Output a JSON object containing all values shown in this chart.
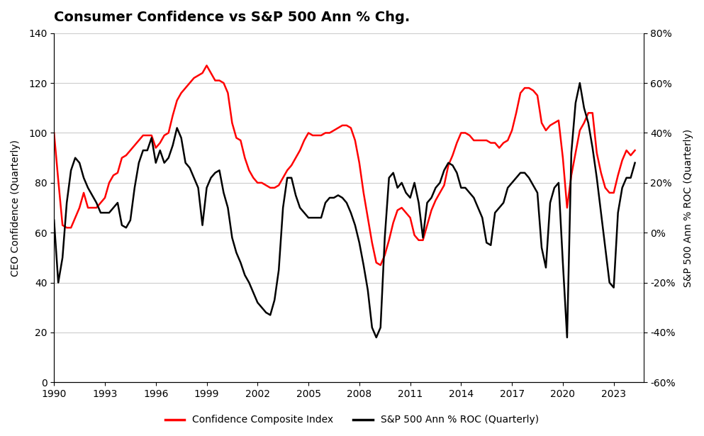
{
  "title": "Consumer Confidence vs S&P 500 Ann % Chg.",
  "ylabel_left": "CEO Confidence (Quarterly)",
  "ylabel_right": "S&P 500 Ann % ROC (Quarterly)",
  "legend_labels": [
    "Confidence Composite Index",
    "S&P 500 Ann % ROC (Quarterly)"
  ],
  "left_color": "#FF0000",
  "right_color": "#000000",
  "background_color": "#FFFFFF",
  "grid_color": "#CCCCCC",
  "ylim_left": [
    0,
    140
  ],
  "ylim_right": [
    -60,
    80
  ],
  "yticks_left": [
    0,
    20,
    40,
    60,
    80,
    100,
    120,
    140
  ],
  "yticks_right": [
    -60,
    -40,
    -20,
    0,
    20,
    40,
    60,
    80
  ],
  "ytick_labels_right": [
    "-60%",
    "-40%",
    "-20%",
    "0%",
    "20%",
    "40%",
    "60%",
    "80%"
  ],
  "xticks": [
    1990,
    1993,
    1996,
    1999,
    2002,
    2005,
    2008,
    2011,
    2014,
    2017,
    2020,
    2023
  ],
  "xlim": [
    1990,
    2024.75
  ],
  "confidence_x": [
    1990.0,
    1990.25,
    1990.5,
    1990.75,
    1991.0,
    1991.25,
    1991.5,
    1991.75,
    1992.0,
    1992.25,
    1992.5,
    1992.75,
    1993.0,
    1993.25,
    1993.5,
    1993.75,
    1994.0,
    1994.25,
    1994.5,
    1994.75,
    1995.0,
    1995.25,
    1995.5,
    1995.75,
    1996.0,
    1996.25,
    1996.5,
    1996.75,
    1997.0,
    1997.25,
    1997.5,
    1997.75,
    1998.0,
    1998.25,
    1998.5,
    1998.75,
    1999.0,
    1999.25,
    1999.5,
    1999.75,
    2000.0,
    2000.25,
    2000.5,
    2000.75,
    2001.0,
    2001.25,
    2001.5,
    2001.75,
    2002.0,
    2002.25,
    2002.5,
    2002.75,
    2003.0,
    2003.25,
    2003.5,
    2003.75,
    2004.0,
    2004.25,
    2004.5,
    2004.75,
    2005.0,
    2005.25,
    2005.5,
    2005.75,
    2006.0,
    2006.25,
    2006.5,
    2006.75,
    2007.0,
    2007.25,
    2007.5,
    2007.75,
    2008.0,
    2008.25,
    2008.5,
    2008.75,
    2009.0,
    2009.25,
    2009.5,
    2009.75,
    2010.0,
    2010.25,
    2010.5,
    2010.75,
    2011.0,
    2011.25,
    2011.5,
    2011.75,
    2012.0,
    2012.25,
    2012.5,
    2012.75,
    2013.0,
    2013.25,
    2013.5,
    2013.75,
    2014.0,
    2014.25,
    2014.5,
    2014.75,
    2015.0,
    2015.25,
    2015.5,
    2015.75,
    2016.0,
    2016.25,
    2016.5,
    2016.75,
    2017.0,
    2017.25,
    2017.5,
    2017.75,
    2018.0,
    2018.25,
    2018.5,
    2018.75,
    2019.0,
    2019.25,
    2019.5,
    2019.75,
    2020.0,
    2020.25,
    2020.5,
    2020.75,
    2021.0,
    2021.25,
    2021.5,
    2021.75,
    2022.0,
    2022.25,
    2022.5,
    2022.75,
    2023.0,
    2023.25,
    2023.5,
    2023.75,
    2024.0,
    2024.25
  ],
  "confidence_y": [
    100,
    81,
    63,
    62,
    62,
    66,
    70,
    76,
    70,
    70,
    70,
    72,
    74,
    80,
    83,
    84,
    90,
    91,
    93,
    95,
    97,
    99,
    99,
    99,
    94,
    96,
    99,
    100,
    107,
    113,
    116,
    118,
    120,
    122,
    123,
    124,
    127,
    124,
    121,
    121,
    120,
    116,
    104,
    98,
    97,
    90,
    85,
    82,
    80,
    80,
    79,
    78,
    78,
    79,
    82,
    85,
    87,
    90,
    93,
    97,
    100,
    99,
    99,
    99,
    100,
    100,
    101,
    102,
    103,
    103,
    102,
    97,
    88,
    76,
    66,
    56,
    48,
    47,
    51,
    57,
    64,
    69,
    70,
    68,
    66,
    59,
    57,
    57,
    63,
    69,
    73,
    76,
    79,
    87,
    91,
    96,
    100,
    100,
    99,
    97,
    97,
    97,
    97,
    96,
    96,
    94,
    96,
    97,
    101,
    108,
    116,
    118,
    118,
    117,
    115,
    104,
    101,
    103,
    104,
    105,
    90,
    70,
    83,
    92,
    101,
    104,
    108,
    108,
    92,
    84,
    78,
    76,
    76,
    83,
    89,
    93,
    91,
    93
  ],
  "sp500_x": [
    1990.0,
    1990.25,
    1990.5,
    1990.75,
    1991.0,
    1991.25,
    1991.5,
    1991.75,
    1992.0,
    1992.25,
    1992.5,
    1992.75,
    1993.0,
    1993.25,
    1993.5,
    1993.75,
    1994.0,
    1994.25,
    1994.5,
    1994.75,
    1995.0,
    1995.25,
    1995.5,
    1995.75,
    1996.0,
    1996.25,
    1996.5,
    1996.75,
    1997.0,
    1997.25,
    1997.5,
    1997.75,
    1998.0,
    1998.25,
    1998.5,
    1998.75,
    1999.0,
    1999.25,
    1999.5,
    1999.75,
    2000.0,
    2000.25,
    2000.5,
    2000.75,
    2001.0,
    2001.25,
    2001.5,
    2001.75,
    2002.0,
    2002.25,
    2002.5,
    2002.75,
    2003.0,
    2003.25,
    2003.5,
    2003.75,
    2004.0,
    2004.25,
    2004.5,
    2004.75,
    2005.0,
    2005.25,
    2005.5,
    2005.75,
    2006.0,
    2006.25,
    2006.5,
    2006.75,
    2007.0,
    2007.25,
    2007.5,
    2007.75,
    2008.0,
    2008.25,
    2008.5,
    2008.75,
    2009.0,
    2009.25,
    2009.5,
    2009.75,
    2010.0,
    2010.25,
    2010.5,
    2010.75,
    2011.0,
    2011.25,
    2011.5,
    2011.75,
    2012.0,
    2012.25,
    2012.5,
    2012.75,
    2013.0,
    2013.25,
    2013.5,
    2013.75,
    2014.0,
    2014.25,
    2014.5,
    2014.75,
    2015.0,
    2015.25,
    2015.5,
    2015.75,
    2016.0,
    2016.25,
    2016.5,
    2016.75,
    2017.0,
    2017.25,
    2017.5,
    2017.75,
    2018.0,
    2018.25,
    2018.5,
    2018.75,
    2019.0,
    2019.25,
    2019.5,
    2019.75,
    2020.0,
    2020.25,
    2020.5,
    2020.75,
    2021.0,
    2021.25,
    2021.5,
    2021.75,
    2022.0,
    2022.25,
    2022.5,
    2022.75,
    2023.0,
    2023.25,
    2023.5,
    2023.75,
    2024.0,
    2024.25
  ],
  "sp500_y": [
    5,
    -20,
    -10,
    12,
    25,
    30,
    28,
    22,
    18,
    15,
    12,
    8,
    8,
    8,
    10,
    12,
    3,
    2,
    5,
    18,
    28,
    33,
    33,
    38,
    28,
    33,
    28,
    30,
    35,
    42,
    38,
    28,
    26,
    22,
    18,
    3,
    18,
    22,
    24,
    25,
    16,
    10,
    -2,
    -8,
    -12,
    -17,
    -20,
    -24,
    -28,
    -30,
    -32,
    -33,
    -27,
    -15,
    10,
    22,
    22,
    15,
    10,
    8,
    6,
    6,
    6,
    6,
    12,
    14,
    14,
    15,
    14,
    12,
    8,
    3,
    -4,
    -13,
    -23,
    -38,
    -42,
    -38,
    -2,
    22,
    24,
    18,
    20,
    16,
    14,
    20,
    12,
    -2,
    12,
    14,
    18,
    20,
    25,
    28,
    27,
    24,
    18,
    18,
    16,
    14,
    10,
    6,
    -4,
    -5,
    8,
    10,
    12,
    18,
    20,
    22,
    24,
    24,
    22,
    19,
    16,
    -6,
    -14,
    12,
    18,
    20,
    -12,
    -42,
    32,
    52,
    60,
    50,
    44,
    34,
    22,
    8,
    -6,
    -20,
    -22,
    8,
    18,
    22,
    22,
    28
  ],
  "title_fontsize": 14,
  "axis_label_fontsize": 10,
  "tick_fontsize": 10,
  "legend_fontsize": 10,
  "linewidth": 1.8
}
